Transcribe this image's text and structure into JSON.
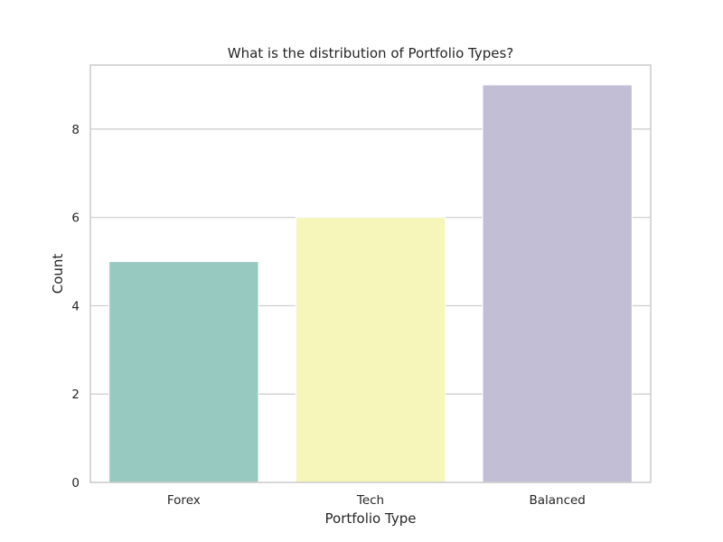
{
  "chart_data": {
    "type": "bar",
    "title": "What is the distribution of Portfolio Types?",
    "xlabel": "Portfolio Type",
    "ylabel": "Count",
    "categories": [
      "Forex",
      "Tech",
      "Balanced"
    ],
    "values": [
      5,
      6,
      9
    ],
    "colors": [
      "#98c9c0",
      "#f6f6bb",
      "#c2bed6"
    ],
    "ylim": [
      0,
      9.45
    ],
    "yticks": [
      0,
      2,
      4,
      6,
      8
    ],
    "grid": true,
    "legend": "none"
  }
}
